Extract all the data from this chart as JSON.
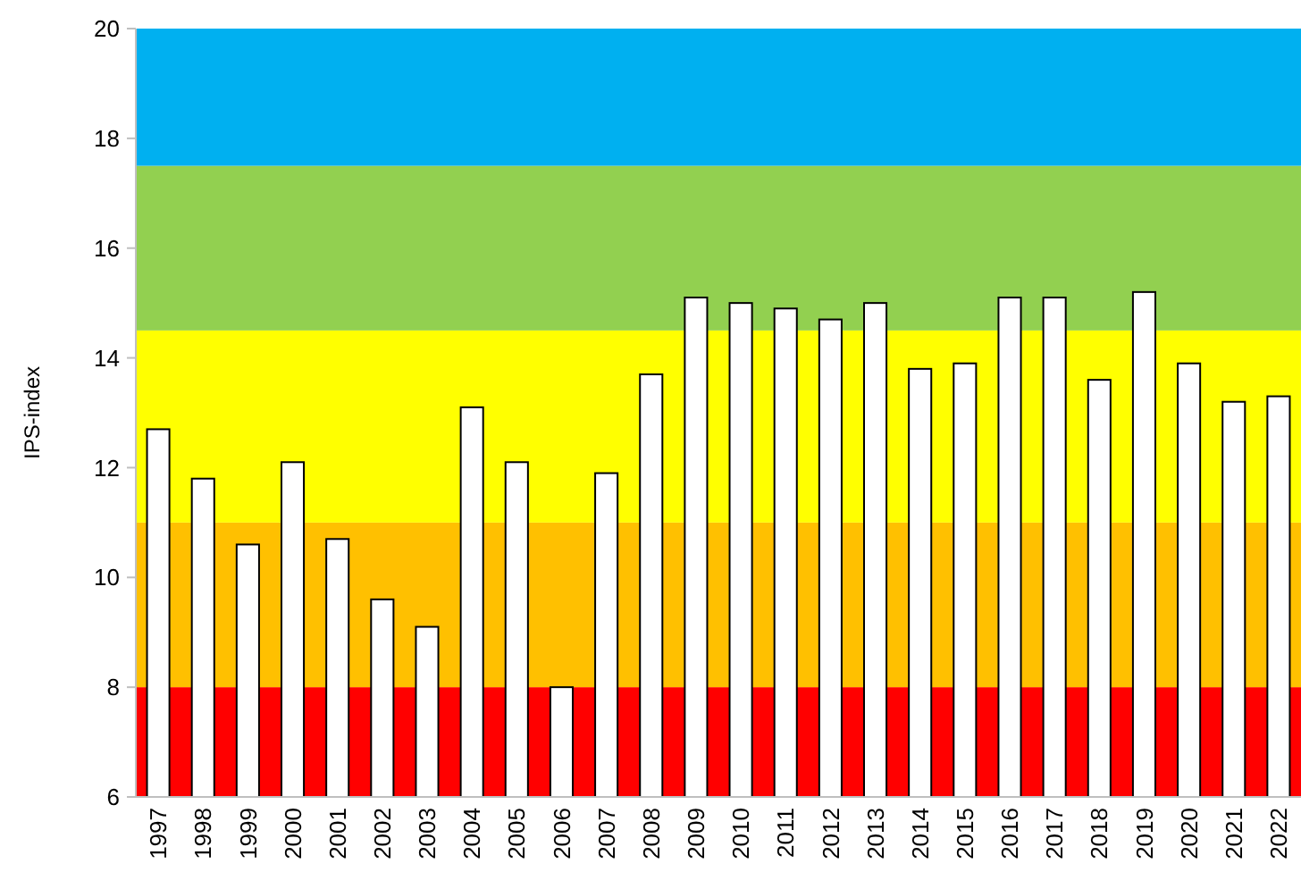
{
  "chart_data": {
    "type": "bar",
    "ylabel": "IPS-index",
    "categories": [
      "1997",
      "1998",
      "1999",
      "2000",
      "2001",
      "2002",
      "2003",
      "2004",
      "2005",
      "2006",
      "2007",
      "2008",
      "2009",
      "2010",
      "2011",
      "2012",
      "2013",
      "2014",
      "2015",
      "2016",
      "2017",
      "2018",
      "2019",
      "2020",
      "2021",
      "2022"
    ],
    "values": [
      12.7,
      11.8,
      10.6,
      12.1,
      10.7,
      9.6,
      9.1,
      13.1,
      12.1,
      8.0,
      11.9,
      13.7,
      15.1,
      15.0,
      14.9,
      14.7,
      15.0,
      13.8,
      13.9,
      15.1,
      15.1,
      13.6,
      15.2,
      13.9,
      13.2,
      13.3
    ],
    "color": "#ffffff",
    "ylim": [
      6,
      20
    ],
    "yticks": [
      6,
      8,
      10,
      12,
      14,
      16,
      18,
      20
    ],
    "bands": [
      {
        "axis": "y",
        "from": 6,
        "to": 8,
        "color": "#ff0000"
      },
      {
        "axis": "y",
        "from": 8,
        "to": 11,
        "color": "#ffc000"
      },
      {
        "axis": "y",
        "from": 11,
        "to": 14.5,
        "color": "#ffff00"
      },
      {
        "axis": "y",
        "from": 14.5,
        "to": 17.5,
        "color": "#92d050"
      },
      {
        "axis": "y",
        "from": 17.5,
        "to": 20,
        "color": "#00b0f0"
      }
    ]
  }
}
